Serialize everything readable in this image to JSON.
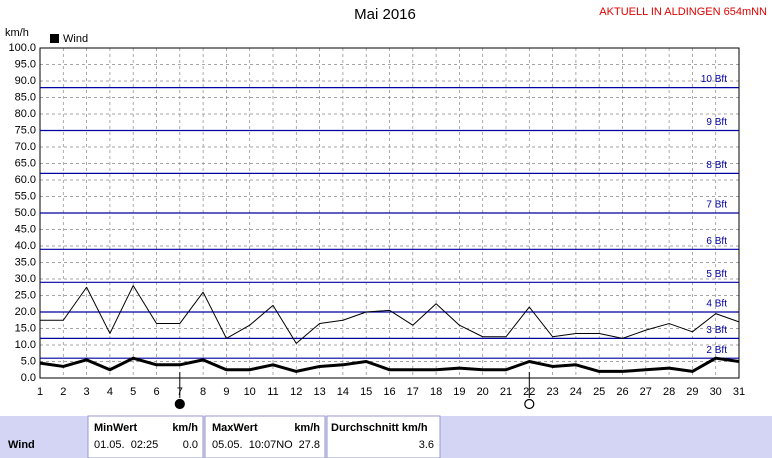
{
  "chart_data": {
    "type": "line",
    "title": "Mai 2016",
    "note": "AKTUELL IN ALDINGEN 654mNN",
    "y_label": "km/h",
    "xlim": [
      1,
      31
    ],
    "xticks": [
      1,
      2,
      3,
      4,
      5,
      6,
      7,
      8,
      9,
      10,
      11,
      12,
      13,
      14,
      15,
      16,
      17,
      18,
      19,
      20,
      21,
      22,
      23,
      24,
      25,
      26,
      27,
      28,
      29,
      30,
      31
    ],
    "x": [
      1,
      2,
      3,
      4,
      5,
      6,
      7,
      8,
      9,
      10,
      11,
      12,
      13,
      14,
      15,
      16,
      17,
      18,
      19,
      20,
      21,
      22,
      23,
      24,
      25,
      26,
      27,
      28,
      29,
      30,
      31
    ],
    "ylim": [
      0,
      100
    ],
    "yticks": [
      {
        "value": 0,
        "label": "0.0"
      },
      {
        "value": 5,
        "label": "5.0"
      },
      {
        "value": 10,
        "label": "10.0"
      },
      {
        "value": 15,
        "label": "15.0"
      },
      {
        "value": 20,
        "label": "20.0"
      },
      {
        "value": 25,
        "label": "25.0"
      },
      {
        "value": 30,
        "label": "30.0"
      },
      {
        "value": 35,
        "label": "35.0"
      },
      {
        "value": 40,
        "label": "40.0"
      },
      {
        "value": 45,
        "label": "45.0"
      },
      {
        "value": 50,
        "label": "50.0"
      },
      {
        "value": 55,
        "label": "55.0"
      },
      {
        "value": 60,
        "label": "60.0"
      },
      {
        "value": 65,
        "label": "65.0"
      },
      {
        "value": 70,
        "label": "70.0"
      },
      {
        "value": 75,
        "label": "75.0"
      },
      {
        "value": 80,
        "label": "80.0"
      },
      {
        "value": 85,
        "label": "85.0"
      },
      {
        "value": 90,
        "label": "90.0"
      },
      {
        "value": 95,
        "label": "95.0"
      },
      {
        "value": 100,
        "label": "100.0"
      }
    ],
    "grid": true,
    "series": [
      {
        "color": "#000000",
        "line_width": 1,
        "values": [
          17.5,
          17.5,
          27.5,
          13.5,
          28,
          16.5,
          16.5,
          26,
          12,
          16,
          22,
          10.5,
          16.5,
          17.5,
          20,
          20.5,
          16,
          22.5,
          16,
          12.5,
          12.5,
          21.5,
          12.5,
          13.5,
          13.5,
          12,
          14.5,
          16.5,
          14,
          19.5,
          17
        ]
      },
      {
        "name": "Wind",
        "color": "#000000",
        "line_width": 3,
        "values": [
          4.5,
          3.5,
          5.5,
          2.5,
          6,
          4,
          4,
          5.5,
          2.5,
          2.5,
          4,
          2,
          3.5,
          4,
          5,
          2.5,
          2.5,
          2.5,
          3,
          2.5,
          2.5,
          5,
          3.5,
          4,
          2,
          2,
          2.5,
          3,
          2,
          6,
          5
        ]
      }
    ],
    "reference_lines": [
      {
        "value": 6,
        "label": "2 Bft"
      },
      {
        "value": 12,
        "label": "3 Bft"
      },
      {
        "value": 20,
        "label": "4 Bft"
      },
      {
        "value": 29,
        "label": "5 Bft"
      },
      {
        "value": 39,
        "label": "6 Bft"
      },
      {
        "value": 50,
        "label": "7 Bft"
      },
      {
        "value": 62,
        "label": "8 Bft"
      },
      {
        "value": 75,
        "label": "9 Bft"
      },
      {
        "value": 88,
        "label": "10 Bft"
      }
    ],
    "new_moon_day": 7,
    "full_moon_day": 22
  },
  "table": {
    "header": [
      "MinWert",
      "km/h",
      "MaxWert",
      "km/h",
      "Durchschnitt km/h"
    ],
    "rows": [
      [
        "Wind",
        "01.05.  02:25",
        "0.0",
        "05.05.  10:07NO",
        "27.8",
        "3.6"
      ]
    ]
  }
}
